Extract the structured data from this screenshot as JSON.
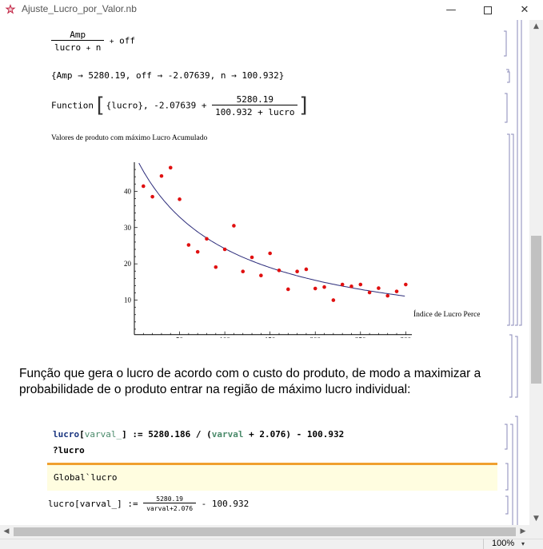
{
  "window": {
    "title": "Ajuste_Lucro_por_Valor.nb",
    "minimize": "—",
    "close": "✕"
  },
  "cell1": {
    "numerator": "Amp",
    "denominator_a": "lucro",
    "denominator_op": "+",
    "denominator_b": "n",
    "tail_op": "+",
    "tail": "off"
  },
  "cell2": {
    "text": "{Amp → 5280.19, off → -2.07639, n → 100.932}"
  },
  "cell3": {
    "prefix": "Function",
    "args": "{lucro}, -2.07639 +",
    "numerator": "5280.19",
    "denominator": "100.932 + lucro"
  },
  "chart_data": {
    "type": "scatter",
    "title": "Valores de produto com máximo Lucro Acumulado",
    "xlabel": "Índice de Lucro Percentua",
    "ylabel": "",
    "xlim": [
      0,
      305
    ],
    "ylim": [
      0,
      48
    ],
    "xticks": [
      50,
      100,
      150,
      200,
      250,
      300
    ],
    "yticks": [
      10,
      20,
      30,
      40
    ],
    "points": [
      [
        10,
        41.4
      ],
      [
        20,
        38.5
      ],
      [
        30,
        44.2
      ],
      [
        40,
        46.5
      ],
      [
        50,
        37.8
      ],
      [
        60,
        25.2
      ],
      [
        70,
        23.3
      ],
      [
        80,
        26.9
      ],
      [
        90,
        19.1
      ],
      [
        100,
        24.0
      ],
      [
        110,
        30.5
      ],
      [
        120,
        17.9
      ],
      [
        130,
        21.8
      ],
      [
        140,
        16.8
      ],
      [
        150,
        22.9
      ],
      [
        160,
        18.2
      ],
      [
        170,
        13.0
      ],
      [
        180,
        17.9
      ],
      [
        190,
        18.5
      ],
      [
        200,
        13.2
      ],
      [
        210,
        13.6
      ],
      [
        220,
        10.0
      ],
      [
        230,
        14.3
      ],
      [
        240,
        13.8
      ],
      [
        250,
        14.3
      ],
      [
        260,
        12.1
      ],
      [
        270,
        13.3
      ],
      [
        280,
        11.2
      ],
      [
        290,
        12.4
      ],
      [
        300,
        14.3
      ]
    ],
    "fit": {
      "amp": 5280.19,
      "off": -2.07639,
      "n": 100.932,
      "x_range": [
        5,
        300
      ]
    },
    "point_color": "#e01010",
    "curve_color": "#2b2b7a"
  },
  "text_cell": {
    "line1": "Função que gera o lucro de acordo com o custo do produto, de modo a maximizar a",
    "line2": "probabilidade de o produto entrar na região de máximo lucro individual:"
  },
  "input_cell": {
    "line1_fn": "lucro",
    "line1_open": "[",
    "line1_arg": "varval_",
    "line1_close": "] := 5280.186 / (",
    "line1_var": "varval",
    "line1_tail": " + 2.076) - 100.932",
    "line2": "?lucro"
  },
  "message": {
    "text": "Global`lucro"
  },
  "definition": {
    "lhs": "lucro[varval_] :=",
    "numerator": "5280.19",
    "denominator": "varval+2.076",
    "tail": "- 100.932"
  },
  "status": {
    "zoom": "100%"
  },
  "colors": {
    "orange_rule": "#f0a030",
    "message_bg": "#fffde0",
    "input_blue": "#1a3580",
    "input_green": "#4a8a6a"
  }
}
